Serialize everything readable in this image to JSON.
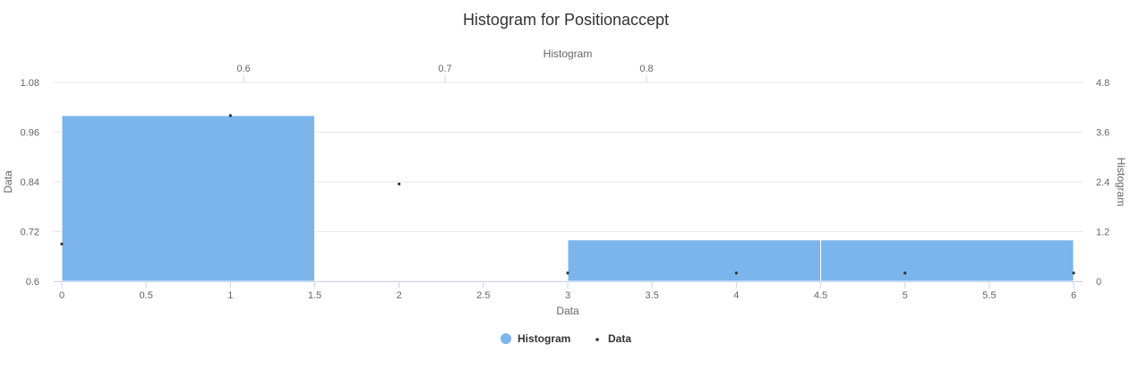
{
  "chart_data": {
    "type": "bar",
    "title": "Histogram for Positionaccept",
    "xAxis_bottom": {
      "title": "Data",
      "range": [
        0,
        6
      ],
      "ticks": [
        "0",
        "0.5",
        "1",
        "1.5",
        "2",
        "2.5",
        "3",
        "3.5",
        "4",
        "4.5",
        "5",
        "5.5",
        "6"
      ]
    },
    "xAxis_top": {
      "title": "Histogram",
      "ticks": [
        {
          "label": "0.6",
          "value": 0.6
        },
        {
          "label": "0.7",
          "value": 0.7
        },
        {
          "label": "0.8",
          "value": 0.8
        }
      ]
    },
    "yAxis_left": {
      "title": "Data",
      "range": [
        0.6,
        1.08
      ],
      "ticks": [
        "0.6",
        "0.72",
        "0.84",
        "0.96",
        "1.08"
      ]
    },
    "yAxis_right": {
      "title": "Histogram",
      "range": [
        0,
        4.8
      ],
      "ticks": [
        "0",
        "1.2",
        "2.4",
        "3.6",
        "4.8"
      ]
    },
    "series": [
      {
        "name": "Histogram",
        "type": "column",
        "color": "#7cb5ec",
        "bins": [
          {
            "x0": 0,
            "x1": 1.5,
            "count": 4
          },
          {
            "x0": 1.5,
            "x1": 3,
            "count": 0
          },
          {
            "x0": 3,
            "x1": 4.5,
            "count": 1
          },
          {
            "x0": 4.5,
            "x1": 6,
            "count": 1
          }
        ]
      },
      {
        "name": "Data",
        "type": "scatter",
        "color": "#333333",
        "x": [
          0,
          1,
          2,
          3,
          4,
          5,
          6
        ],
        "y": [
          0.69,
          1.0,
          0.835,
          0.62,
          0.62,
          0.62,
          0.62
        ]
      }
    ],
    "legend": {
      "position": "bottom-center",
      "items": [
        {
          "label": "Histogram",
          "symbol": "circle",
          "color": "#7cb5ec"
        },
        {
          "label": "Data",
          "symbol": "dot",
          "color": "#333333"
        }
      ]
    },
    "grid": true
  }
}
